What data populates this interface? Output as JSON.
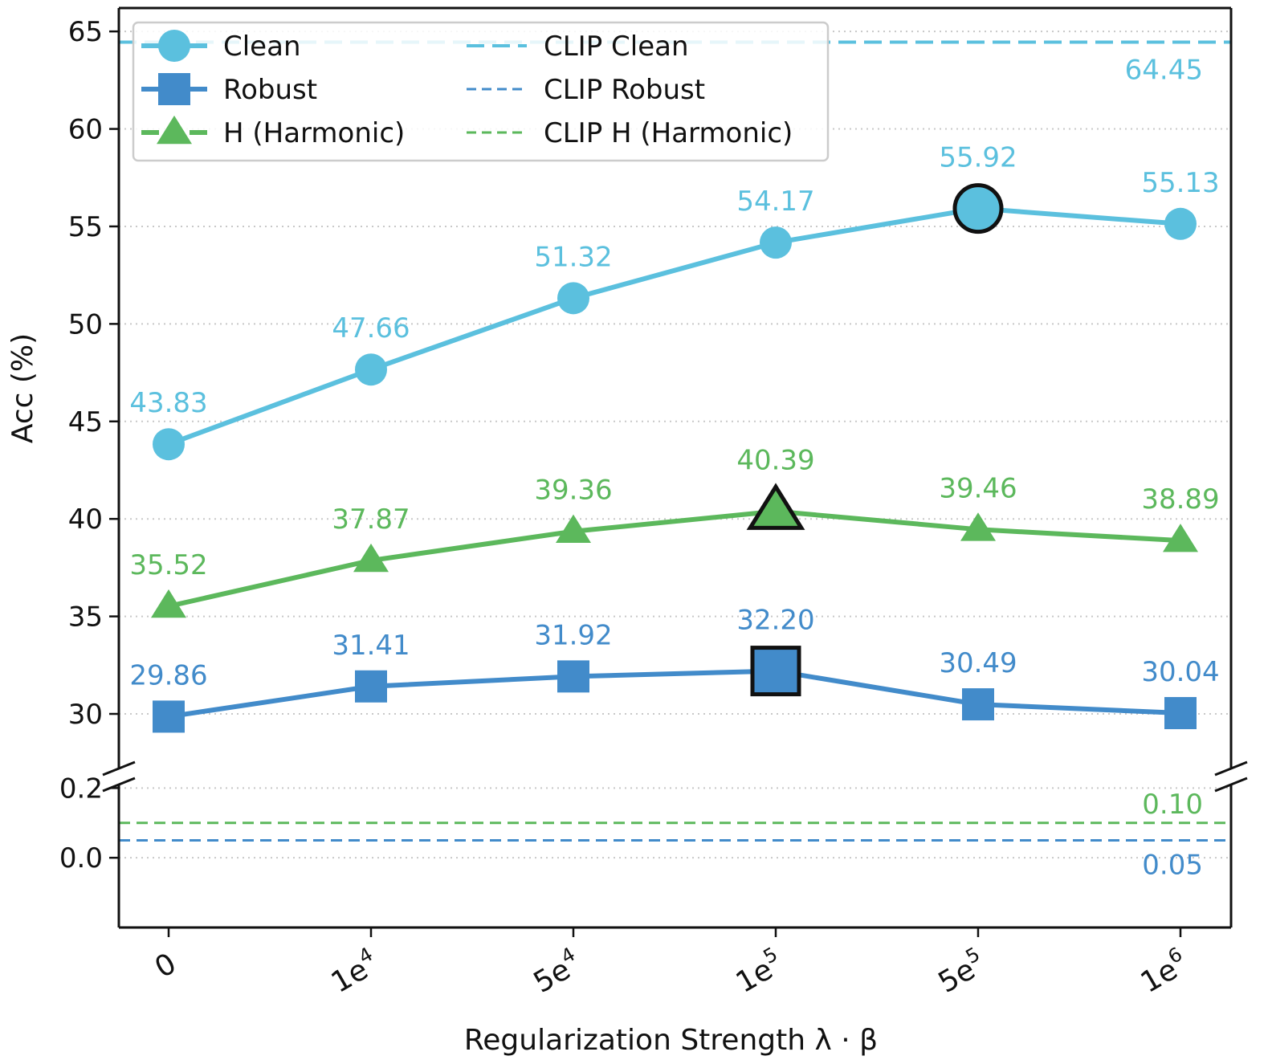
{
  "chart_data": {
    "type": "line",
    "xlabel": "Regularization Strength λ · β",
    "ylabel": "Acc (%)",
    "x_ticks": [
      {
        "base": "0",
        "sup": ""
      },
      {
        "base": "1e",
        "sup": "4"
      },
      {
        "base": "5e",
        "sup": "4"
      },
      {
        "base": "1e",
        "sup": "5"
      },
      {
        "base": "5e",
        "sup": "5"
      },
      {
        "base": "1e",
        "sup": "6"
      }
    ],
    "axis_break": true,
    "upper_ylim": [
      27.2,
      66.2
    ],
    "upper_yticks": [
      "30",
      "35",
      "40",
      "45",
      "50",
      "55",
      "60",
      "65"
    ],
    "lower_ylim": [
      -0.2,
      0.21
    ],
    "lower_yticks": [
      "0.0",
      "0.2"
    ],
    "grid": "y-dotted",
    "legend_position": "top-left",
    "series": [
      {
        "name": "Clean",
        "marker": "circle",
        "color": "#5bc0de",
        "values": [
          43.83,
          47.66,
          51.32,
          54.17,
          55.92,
          55.13
        ],
        "labels": [
          "43.83",
          "47.66",
          "51.32",
          "54.17",
          "55.92",
          "55.13"
        ],
        "highlight_index": 4
      },
      {
        "name": "Robust",
        "marker": "square",
        "color": "#428bca",
        "values": [
          29.86,
          31.41,
          31.92,
          32.2,
          30.49,
          30.04
        ],
        "labels": [
          "29.86",
          "31.41",
          "31.92",
          "32.20",
          "30.49",
          "30.04"
        ],
        "highlight_index": 3
      },
      {
        "name": "H (Harmonic)",
        "marker": "triangle",
        "color": "#5cb85c",
        "values": [
          35.52,
          37.87,
          39.36,
          40.39,
          39.46,
          38.89
        ],
        "labels": [
          "35.52",
          "37.87",
          "39.36",
          "40.39",
          "39.46",
          "38.89"
        ],
        "highlight_index": 3
      }
    ],
    "reference_lines": [
      {
        "name": "CLIP Clean",
        "value": 64.45,
        "label": "64.45",
        "color": "#5bc0de",
        "panel": "upper"
      },
      {
        "name": "CLIP Robust",
        "value": 0.05,
        "label": "0.05",
        "color": "#428bca",
        "panel": "lower"
      },
      {
        "name": "CLIP H (Harmonic)",
        "value": 0.1,
        "label": "0.10",
        "color": "#5cb85c",
        "panel": "lower"
      }
    ]
  }
}
